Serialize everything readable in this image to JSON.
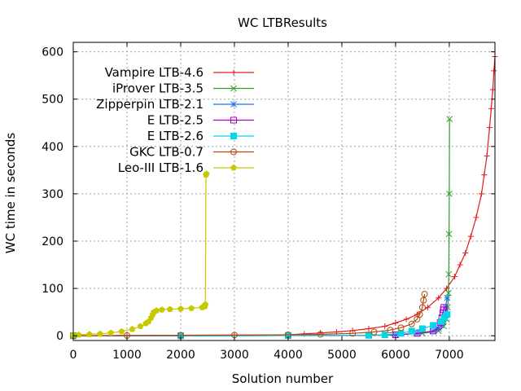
{
  "chart_data": {
    "type": "scatter",
    "title": "WC LTBResults",
    "xlabel": "Solution number",
    "ylabel": "WC time in seconds",
    "xlim": [
      0,
      7850
    ],
    "ylim": [
      -10,
      620
    ],
    "xticks": [
      0,
      1000,
      2000,
      3000,
      4000,
      5000,
      6000,
      7000
    ],
    "yticks": [
      0,
      100,
      200,
      300,
      400,
      500,
      600
    ],
    "grid": true,
    "legend_position": "top-left",
    "series": [
      {
        "name": "Vampire LTB-4.6",
        "color": "#e41a1c",
        "marker": "plus",
        "x": [
          0,
          1000,
          2000,
          3000,
          4000,
          4300,
          4600,
          4900,
          5200,
          5500,
          5800,
          6000,
          6200,
          6400,
          6600,
          6800,
          6950,
          7100,
          7200,
          7300,
          7400,
          7500,
          7600,
          7650,
          7700,
          7750,
          7780,
          7810,
          7830,
          7850
        ],
        "y": [
          0,
          0.5,
          1,
          1.5,
          2,
          4,
          6,
          8,
          11,
          15,
          20,
          27,
          35,
          45,
          60,
          80,
          100,
          125,
          150,
          175,
          210,
          250,
          300,
          340,
          380,
          440,
          480,
          520,
          560,
          590
        ]
      },
      {
        "name": "iProver LTB-3.5",
        "color": "#2ca02c",
        "marker": "x",
        "x": [
          0,
          2000,
          4000,
          5500,
          6000,
          6500,
          6800,
          6900,
          6950,
          6970,
          6985,
          6990,
          6995,
          7000,
          7005
        ],
        "y": [
          0,
          0,
          0.5,
          1,
          2,
          5,
          10,
          20,
          35,
          60,
          90,
          130,
          215,
          300,
          458
        ]
      },
      {
        "name": "Zipperpin LTB-2.1",
        "color": "#1f77e4",
        "marker": "star",
        "x": [
          0,
          2000,
          4000,
          5500,
          6000,
          6400,
          6700,
          6800,
          6850,
          6880,
          6900,
          6930,
          6960
        ],
        "y": [
          0,
          0,
          0.5,
          1,
          2,
          5,
          10,
          15,
          22,
          30,
          40,
          60,
          80
        ]
      },
      {
        "name": "E LTB-2.5",
        "color": "#b000c8",
        "marker": "square-open",
        "x": [
          0,
          2000,
          4000,
          5500,
          6000,
          6400,
          6700,
          6800,
          6830,
          6860,
          6880,
          6890,
          6900
        ],
        "y": [
          0,
          0,
          0.5,
          1,
          2,
          5,
          10,
          20,
          28,
          38,
          48,
          55,
          60
        ]
      },
      {
        "name": "E LTB-2.6",
        "color": "#00d8e8",
        "marker": "square-filled",
        "x": [
          0,
          2000,
          4000,
          5500,
          5800,
          6100,
          6300,
          6500,
          6700,
          6850,
          6900,
          6960
        ],
        "y": [
          0,
          0,
          0.5,
          1,
          2,
          5,
          10,
          15,
          22,
          30,
          38,
          45
        ]
      },
      {
        "name": "GKC LTB-0.7",
        "color": "#b04a10",
        "marker": "circle-open",
        "x": [
          0,
          1000,
          2000,
          3000,
          4000,
          4600,
          5200,
          5600,
          5900,
          6100,
          6300,
          6400,
          6450,
          6500,
          6520,
          6540
        ],
        "y": [
          0,
          0.5,
          1,
          1.5,
          2,
          3,
          5,
          8,
          12,
          17,
          25,
          35,
          45,
          60,
          75,
          88
        ]
      },
      {
        "name": "Leo-III LTB-1.6",
        "color": "#c8c800",
        "marker": "pentagon-filled",
        "x": [
          0,
          100,
          300,
          500,
          700,
          900,
          1100,
          1250,
          1350,
          1400,
          1450,
          1480,
          1500,
          1550,
          1650,
          1800,
          2000,
          2200,
          2400,
          2450,
          2460,
          2470,
          2480
        ],
        "y": [
          1,
          2,
          3,
          4,
          6,
          9,
          14,
          20,
          26,
          30,
          38,
          45,
          50,
          53,
          55,
          56,
          57,
          58,
          60,
          62,
          66,
          340,
          342
        ]
      }
    ]
  }
}
